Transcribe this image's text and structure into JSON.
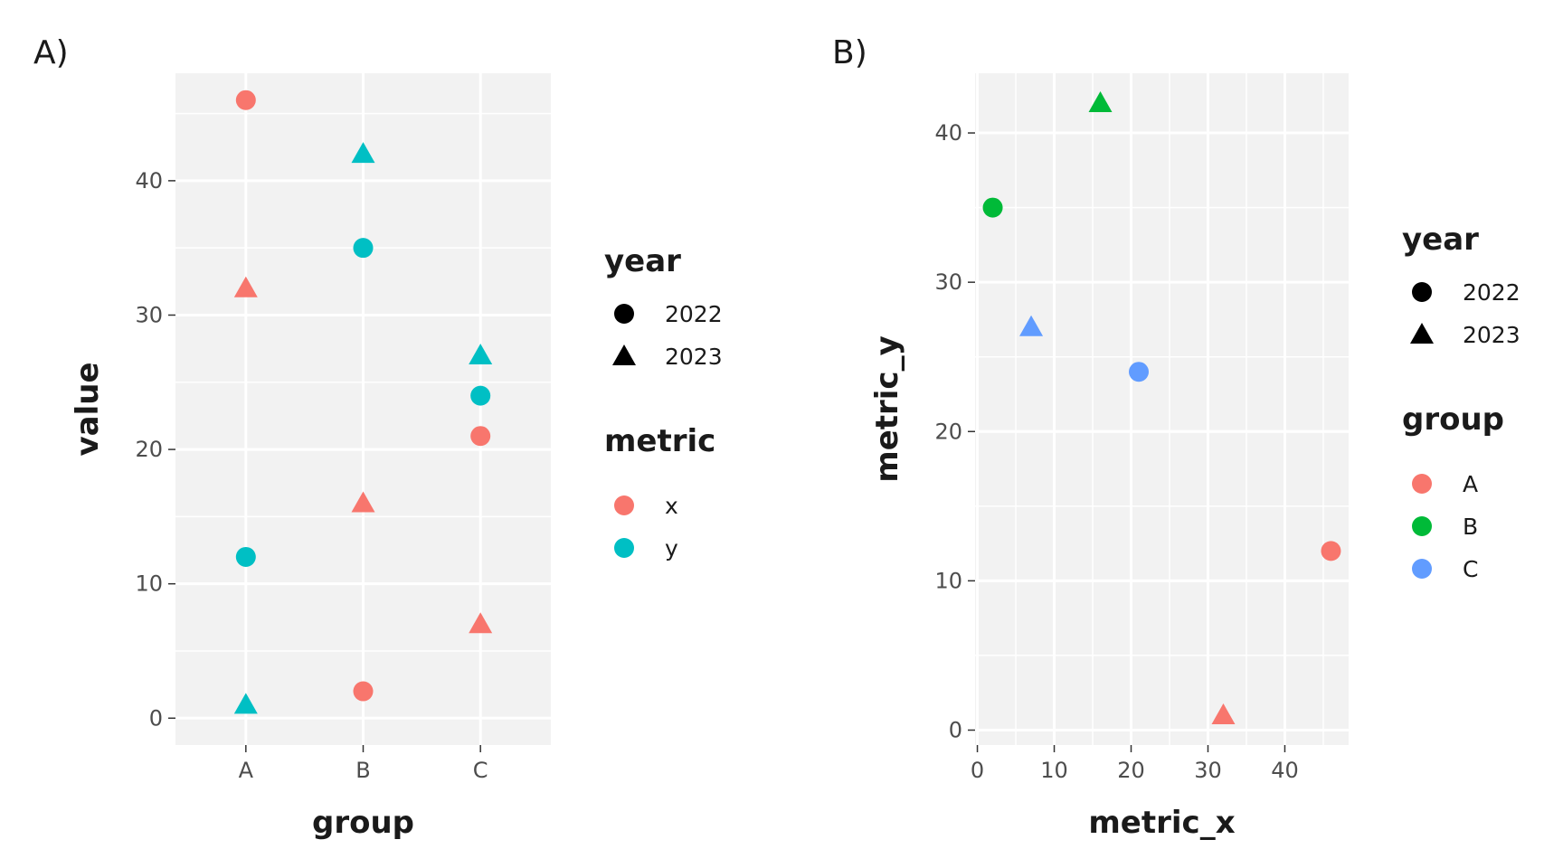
{
  "panels": [
    {
      "tag": "A)",
      "chart_data": {
        "type": "scatter",
        "x_type": "categorical",
        "categories": [
          "A",
          "B",
          "C"
        ],
        "xlabel": "group",
        "ylabel": "value",
        "ylim": [
          -2,
          48
        ],
        "yticks": [
          0,
          10,
          20,
          30,
          40
        ],
        "grid": true,
        "legend_placement": "right",
        "points": [
          {
            "x": "A",
            "y": 46,
            "color_key": "x",
            "shape_key": "2022"
          },
          {
            "x": "A",
            "y": 32,
            "color_key": "x",
            "shape_key": "2023"
          },
          {
            "x": "A",
            "y": 12,
            "color_key": "y",
            "shape_key": "2022"
          },
          {
            "x": "A",
            "y": 1,
            "color_key": "y",
            "shape_key": "2023"
          },
          {
            "x": "B",
            "y": 42,
            "color_key": "y",
            "shape_key": "2023"
          },
          {
            "x": "B",
            "y": 35,
            "color_key": "y",
            "shape_key": "2022"
          },
          {
            "x": "B",
            "y": 16,
            "color_key": "x",
            "shape_key": "2023"
          },
          {
            "x": "B",
            "y": 2,
            "color_key": "x",
            "shape_key": "2022"
          },
          {
            "x": "C",
            "y": 27,
            "color_key": "y",
            "shape_key": "2023"
          },
          {
            "x": "C",
            "y": 24,
            "color_key": "y",
            "shape_key": "2022"
          },
          {
            "x": "C",
            "y": 21,
            "color_key": "x",
            "shape_key": "2022"
          },
          {
            "x": "C",
            "y": 7,
            "color_key": "x",
            "shape_key": "2023"
          }
        ],
        "shape_legend": {
          "title": "year",
          "items": [
            {
              "key": "2022",
              "shape": "circle"
            },
            {
              "key": "2023",
              "shape": "triangle"
            }
          ]
        },
        "color_legend": {
          "title": "metric",
          "items": [
            {
              "key": "x",
              "color": "#F8766D"
            },
            {
              "key": "y",
              "color": "#00BFC4"
            }
          ]
        }
      }
    },
    {
      "tag": "B)",
      "chart_data": {
        "type": "scatter",
        "x_type": "numeric",
        "xlabel": "metric_x",
        "ylabel": "metric_y",
        "xlim": [
          -0.3,
          48.3
        ],
        "xticks": [
          0,
          10,
          20,
          30,
          40
        ],
        "ylim": [
          -1,
          44
        ],
        "yticks": [
          0,
          10,
          20,
          30,
          40
        ],
        "grid": true,
        "legend_placement": "right",
        "points": [
          {
            "x": 46,
            "y": 12,
            "color_key": "A",
            "shape_key": "2022"
          },
          {
            "x": 32,
            "y": 1,
            "color_key": "A",
            "shape_key": "2023"
          },
          {
            "x": 2,
            "y": 35,
            "color_key": "B",
            "shape_key": "2022"
          },
          {
            "x": 16,
            "y": 42,
            "color_key": "B",
            "shape_key": "2023"
          },
          {
            "x": 21,
            "y": 24,
            "color_key": "C",
            "shape_key": "2022"
          },
          {
            "x": 7,
            "y": 27,
            "color_key": "C",
            "shape_key": "2023"
          }
        ],
        "shape_legend": {
          "title": "year",
          "items": [
            {
              "key": "2022",
              "shape": "circle"
            },
            {
              "key": "2023",
              "shape": "triangle"
            }
          ]
        },
        "color_legend": {
          "title": "group",
          "items": [
            {
              "key": "A",
              "color": "#F8766D"
            },
            {
              "key": "B",
              "color": "#00BA38"
            },
            {
              "key": "C",
              "color": "#619CFF"
            }
          ]
        }
      }
    }
  ],
  "colors": {
    "panel_background": "#F2F2F2",
    "grid": "#FFFFFF",
    "tick_text": "#4D4D4D",
    "legend_key_shape": "#000000"
  }
}
